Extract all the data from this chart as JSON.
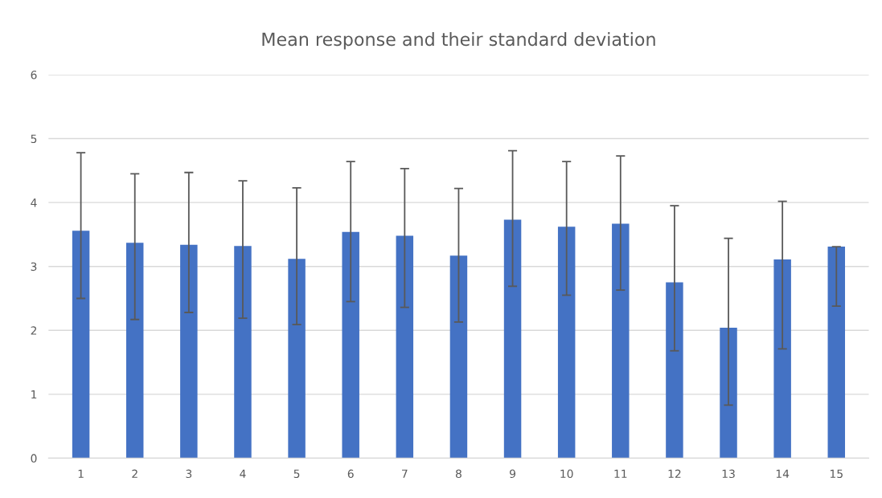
{
  "chart_data": {
    "type": "bar",
    "title": "Mean response and their standard deviation",
    "categories": [
      "1",
      "2",
      "3",
      "4",
      "5",
      "6",
      "7",
      "8",
      "9",
      "10",
      "11",
      "12",
      "13",
      "14",
      "15"
    ],
    "values": [
      3.56,
      3.37,
      3.34,
      3.32,
      3.12,
      3.54,
      3.48,
      3.17,
      3.73,
      3.62,
      3.67,
      2.75,
      2.04,
      3.11,
      3.31
    ],
    "errors": [
      [
        2.5,
        4.78
      ],
      [
        2.17,
        4.45
      ],
      [
        2.28,
        4.47
      ],
      [
        2.19,
        4.34
      ],
      [
        2.09,
        4.23
      ],
      [
        2.45,
        4.64
      ],
      [
        2.36,
        4.53
      ],
      [
        2.13,
        4.22
      ],
      [
        2.69,
        4.81
      ],
      [
        2.55,
        4.64
      ],
      [
        2.63,
        4.73
      ],
      [
        1.68,
        3.95
      ],
      [
        0.83,
        3.44
      ],
      [
        1.71,
        4.02
      ],
      [
        2.38,
        3.31
      ]
    ],
    "color": "#4472c4",
    "ylim": [
      0,
      6
    ],
    "yticks": [
      0,
      1,
      2,
      3,
      4,
      5,
      6
    ],
    "grid": "y"
  }
}
